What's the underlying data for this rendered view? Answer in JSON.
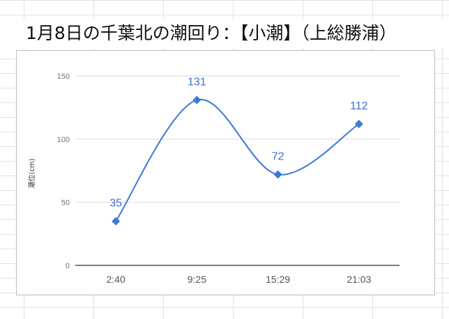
{
  "chart_data": {
    "type": "line",
    "title": "1月8日の千葉北の潮回り：【小潮】（上総勝浦）",
    "xlabel": "",
    "ylabel": "潮位(cm)",
    "categories": [
      "2:40",
      "9:25",
      "15:29",
      "21:03"
    ],
    "series": [
      {
        "values": [
          35,
          131,
          72,
          112
        ],
        "color": "#3c78d8",
        "marker": "diamond",
        "smooth": true
      }
    ],
    "ylim": [
      0,
      160
    ],
    "yticks": [
      0,
      50,
      100,
      150
    ],
    "grid": true,
    "data_labels": true,
    "legend": "none"
  }
}
